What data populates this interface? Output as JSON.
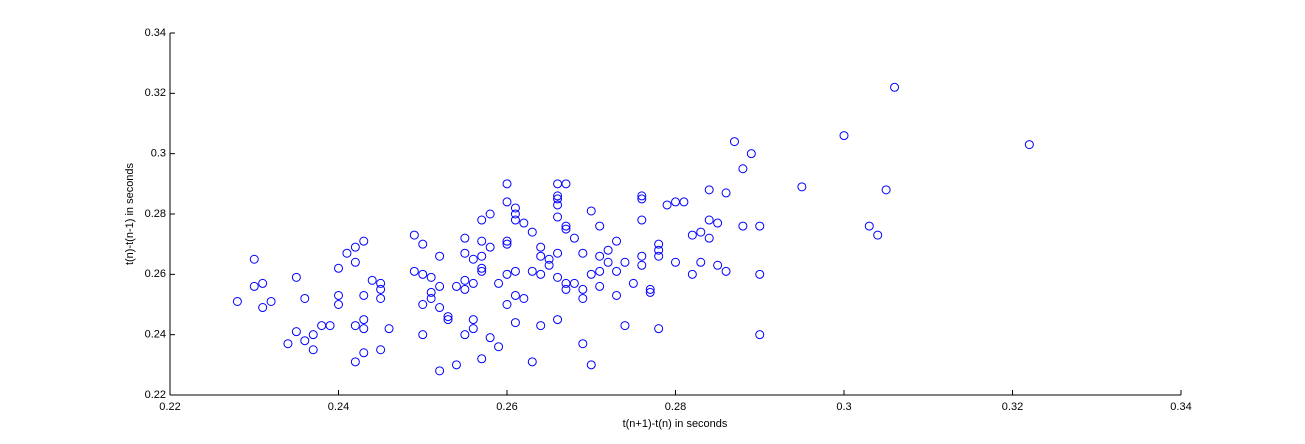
{
  "chart_data": {
    "type": "scatter",
    "xlabel": "t(n+1)-t(n) in seconds",
    "ylabel": "t(n)-t(n-1) in seconds",
    "xlim": [
      0.22,
      0.34
    ],
    "ylim": [
      0.22,
      0.34
    ],
    "xticks": [
      0.22,
      0.24,
      0.26,
      0.28,
      0.3,
      0.32,
      0.34
    ],
    "yticks": [
      0.22,
      0.24,
      0.26,
      0.28,
      0.3,
      0.32,
      0.34
    ],
    "color": "#0000ff",
    "x": [
      0.228,
      0.23,
      0.23,
      0.231,
      0.231,
      0.232,
      0.234,
      0.235,
      0.235,
      0.236,
      0.236,
      0.237,
      0.237,
      0.238,
      0.239,
      0.24,
      0.24,
      0.24,
      0.241,
      0.242,
      0.242,
      0.242,
      0.242,
      0.243,
      0.243,
      0.243,
      0.243,
      0.243,
      0.244,
      0.245,
      0.245,
      0.245,
      0.245,
      0.246,
      0.249,
      0.249,
      0.25,
      0.25,
      0.25,
      0.25,
      0.251,
      0.251,
      0.251,
      0.252,
      0.252,
      0.252,
      0.252,
      0.253,
      0.253,
      0.254,
      0.254,
      0.255,
      0.255,
      0.255,
      0.255,
      0.255,
      0.256,
      0.256,
      0.256,
      0.256,
      0.257,
      0.257,
      0.257,
      0.257,
      0.257,
      0.257,
      0.258,
      0.258,
      0.258,
      0.259,
      0.259,
      0.26,
      0.26,
      0.26,
      0.26,
      0.26,
      0.26,
      0.261,
      0.261,
      0.261,
      0.261,
      0.261,
      0.261,
      0.262,
      0.262,
      0.263,
      0.263,
      0.263,
      0.264,
      0.264,
      0.264,
      0.264,
      0.265,
      0.265,
      0.266,
      0.266,
      0.266,
      0.266,
      0.266,
      0.266,
      0.266,
      0.266,
      0.267,
      0.267,
      0.267,
      0.267,
      0.267,
      0.268,
      0.268,
      0.269,
      0.269,
      0.269,
      0.269,
      0.27,
      0.27,
      0.27,
      0.271,
      0.271,
      0.271,
      0.271,
      0.272,
      0.272,
      0.273,
      0.273,
      0.273,
      0.274,
      0.274,
      0.275,
      0.276,
      0.276,
      0.276,
      0.276,
      0.276,
      0.277,
      0.277,
      0.278,
      0.278,
      0.278,
      0.278,
      0.279,
      0.28,
      0.28,
      0.281,
      0.282,
      0.282,
      0.283,
      0.283,
      0.284,
      0.284,
      0.284,
      0.285,
      0.285,
      0.286,
      0.286,
      0.287,
      0.288,
      0.288,
      0.289,
      0.29,
      0.29,
      0.29,
      0.295,
      0.3,
      0.303,
      0.304,
      0.305,
      0.306,
      0.322
    ],
    "values": [
      0.251,
      0.265,
      0.256,
      0.257,
      0.249,
      0.251,
      0.237,
      0.259,
      0.241,
      0.252,
      0.238,
      0.24,
      0.235,
      0.243,
      0.243,
      0.262,
      0.253,
      0.25,
      0.267,
      0.269,
      0.264,
      0.243,
      0.231,
      0.271,
      0.253,
      0.245,
      0.242,
      0.234,
      0.258,
      0.257,
      0.255,
      0.252,
      0.235,
      0.242,
      0.273,
      0.261,
      0.27,
      0.26,
      0.25,
      0.24,
      0.259,
      0.254,
      0.252,
      0.266,
      0.256,
      0.249,
      0.228,
      0.246,
      0.245,
      0.256,
      0.23,
      0.272,
      0.267,
      0.258,
      0.255,
      0.24,
      0.265,
      0.257,
      0.245,
      0.242,
      0.278,
      0.271,
      0.266,
      0.262,
      0.261,
      0.232,
      0.28,
      0.269,
      0.239,
      0.257,
      0.236,
      0.29,
      0.284,
      0.271,
      0.27,
      0.26,
      0.25,
      0.282,
      0.28,
      0.278,
      0.261,
      0.253,
      0.244,
      0.277,
      0.252,
      0.274,
      0.261,
      0.231,
      0.269,
      0.266,
      0.26,
      0.243,
      0.265,
      0.263,
      0.29,
      0.286,
      0.285,
      0.283,
      0.279,
      0.267,
      0.259,
      0.245,
      0.29,
      0.276,
      0.275,
      0.257,
      0.255,
      0.272,
      0.257,
      0.267,
      0.255,
      0.252,
      0.237,
      0.281,
      0.26,
      0.23,
      0.276,
      0.266,
      0.261,
      0.256,
      0.268,
      0.264,
      0.271,
      0.261,
      0.253,
      0.264,
      0.243,
      0.257,
      0.286,
      0.285,
      0.278,
      0.266,
      0.263,
      0.255,
      0.254,
      0.27,
      0.268,
      0.266,
      0.242,
      0.283,
      0.284,
      0.264,
      0.284,
      0.273,
      0.26,
      0.274,
      0.264,
      0.288,
      0.278,
      0.272,
      0.277,
      0.263,
      0.287,
      0.261,
      0.304,
      0.295,
      0.276,
      0.3,
      0.276,
      0.26,
      0.24,
      0.289,
      0.306,
      0.276,
      0.273,
      0.288,
      0.322,
      0.303
    ]
  }
}
